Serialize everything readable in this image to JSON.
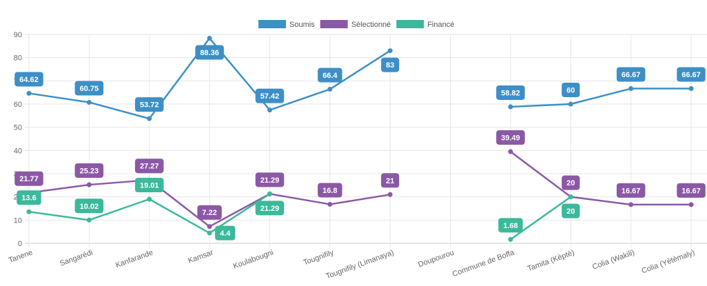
{
  "chart_data": {
    "type": "line",
    "categories": [
      "Tanene",
      "Sangarédi",
      "Kanfarande",
      "Kamsar",
      "Koulabougni",
      "Tougnifily",
      "Tougnifily (Limanaya)",
      "Doupourou",
      "Commune de Boffa",
      "Tamita (Kèptè)",
      "Colia (Wakili)",
      "Colia (Yètèmaly)"
    ],
    "ylim": [
      0,
      90
    ],
    "yticks": [
      0,
      10,
      20,
      30,
      40,
      50,
      60,
      70,
      80,
      90
    ],
    "grid": true,
    "legend": "top-center",
    "series": [
      {
        "name": "Soumis",
        "color": "#3d8fc6",
        "values": [
          64.62,
          60.75,
          53.72,
          88.36,
          57.42,
          66.4,
          83,
          null,
          58.82,
          60,
          66.67,
          66.67
        ]
      },
      {
        "name": "Sélectionné",
        "color": "#8b58a6",
        "values": [
          21.77,
          25.23,
          27.27,
          7.22,
          21.29,
          16.8,
          21,
          null,
          39.49,
          20,
          16.67,
          16.67
        ]
      },
      {
        "name": "Financé",
        "color": "#3bb99b",
        "values": [
          13.6,
          10.02,
          19.01,
          4.4,
          21.29,
          null,
          null,
          null,
          1.68,
          20,
          null,
          null
        ]
      }
    ]
  }
}
